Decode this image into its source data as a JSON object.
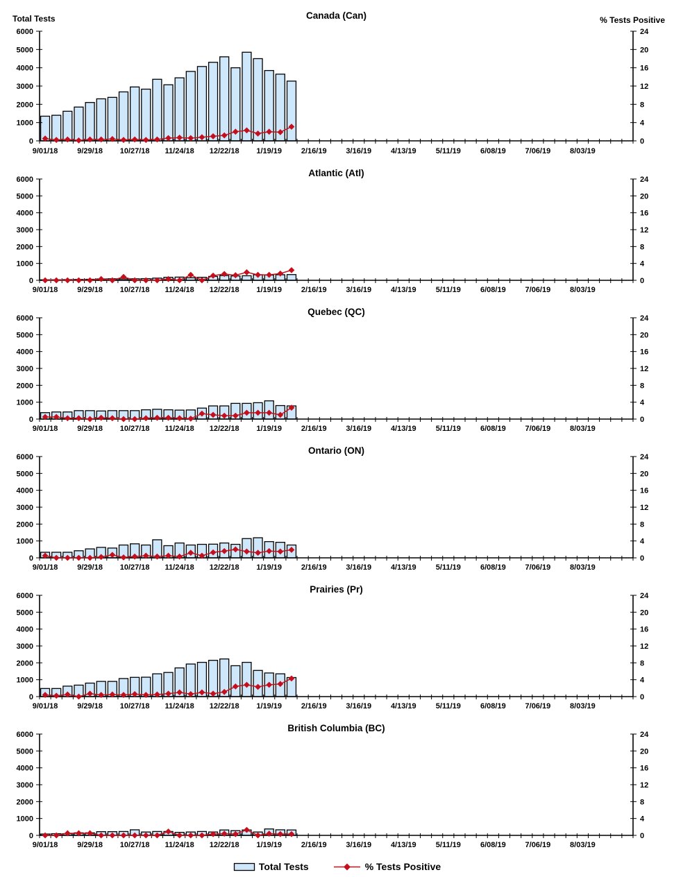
{
  "page": {
    "description": "Six stacked weekly flu surveillance charts: total tests (bars, left axis) and percent tests positive (red diamond line, right axis) for Canada and five regions"
  },
  "legend": {
    "bar_label": "Total Tests",
    "line_label": "% Tests Positive"
  },
  "colors": {
    "bar_fill": "#cfe7fb",
    "bar_stroke": "#000000",
    "line": "#c3101c",
    "marker": "#c3101c",
    "axis": "#000000",
    "text": "#000000"
  },
  "axes": {
    "left_axis": {
      "title": "Total Tests",
      "min": 0,
      "max": 6000,
      "step": 1000
    },
    "right_axis": {
      "title": "% Tests Positive",
      "min": 0,
      "max": 24,
      "step": 4
    },
    "x_axis": {
      "weeks_total": 53,
      "label_every": 4,
      "labels": [
        "9/01/18",
        "9/29/18",
        "10/27/18",
        "11/24/18",
        "12/22/18",
        "1/19/19",
        "2/16/19",
        "3/16/19",
        "4/13/19",
        "5/11/19",
        "6/08/19",
        "7/06/19",
        "8/03/19"
      ]
    }
  },
  "chart_data": [
    {
      "type": "bar+line",
      "title": "Canada (Can)",
      "left_ylim": [
        0,
        6000
      ],
      "right_ylim": [
        0,
        24
      ],
      "x_start": "9/01/18",
      "bar_series": {
        "name": "Total Tests",
        "values": [
          1350,
          1400,
          1620,
          1850,
          2100,
          2300,
          2380,
          2680,
          2950,
          2830,
          3370,
          3070,
          3450,
          3800,
          4070,
          4300,
          4600,
          4000,
          4850,
          4500,
          3850,
          3650,
          3270
        ]
      },
      "line_series": {
        "name": "% Tests Positive",
        "values": [
          0.5,
          0.2,
          0.3,
          0.1,
          0.3,
          0.3,
          0.4,
          0.2,
          0.3,
          0.2,
          0.3,
          0.6,
          0.7,
          0.6,
          0.8,
          1.0,
          1.2,
          2.0,
          2.3,
          1.6,
          2.0,
          1.9,
          3.1
        ]
      }
    },
    {
      "type": "bar+line",
      "title": "Atlantic (Atl)",
      "left_ylim": [
        0,
        6000
      ],
      "right_ylim": [
        0,
        24
      ],
      "x_start": "9/01/18",
      "bar_series": {
        "name": "Total Tests",
        "values": [
          30,
          30,
          40,
          50,
          60,
          80,
          90,
          80,
          90,
          100,
          130,
          180,
          190,
          150,
          180,
          230,
          280,
          260,
          270,
          330,
          310,
          330,
          340
        ]
      },
      "line_series": {
        "name": "% Tests Positive",
        "values": [
          0,
          0,
          0,
          0,
          0,
          0.3,
          0,
          0.8,
          0,
          0,
          0,
          0.3,
          0,
          1.3,
          0,
          1.1,
          1.5,
          1.2,
          1.9,
          1.3,
          1.3,
          1.6,
          2.4
        ]
      }
    },
    {
      "type": "bar+line",
      "title": "Quebec (QC)",
      "left_ylim": [
        0,
        6000
      ],
      "right_ylim": [
        0,
        24
      ],
      "x_start": "9/01/18",
      "bar_series": {
        "name": "Total Tests",
        "values": [
          380,
          420,
          420,
          500,
          500,
          480,
          500,
          500,
          500,
          550,
          580,
          550,
          530,
          540,
          650,
          780,
          780,
          930,
          930,
          970,
          1080,
          800,
          780
        ]
      },
      "line_series": {
        "name": "% Tests Positive",
        "values": [
          0.5,
          0.5,
          0.2,
          0.2,
          0,
          0.3,
          0.2,
          0,
          0,
          0.2,
          0.3,
          0.3,
          0.2,
          0.1,
          1.3,
          1.0,
          0.8,
          0.8,
          1.5,
          1.5,
          1.5,
          1.0,
          2.7
        ]
      }
    },
    {
      "type": "bar+line",
      "title": "Ontario (ON)",
      "left_ylim": [
        0,
        6000
      ],
      "right_ylim": [
        0,
        24
      ],
      "x_start": "9/01/18",
      "bar_series": {
        "name": "Total Tests",
        "values": [
          330,
          330,
          330,
          420,
          530,
          620,
          580,
          760,
          830,
          760,
          1070,
          720,
          880,
          760,
          800,
          810,
          880,
          800,
          1140,
          1190,
          960,
          920,
          760
        ]
      },
      "line_series": {
        "name": "% Tests Positive",
        "values": [
          0.5,
          0,
          0,
          0,
          0,
          0.2,
          0.7,
          0.1,
          0.3,
          0.5,
          0.3,
          0.5,
          0.3,
          1.2,
          0.5,
          1.3,
          1.6,
          2.0,
          1.5,
          1.2,
          1.6,
          1.5,
          1.9
        ]
      }
    },
    {
      "type": "bar+line",
      "title": "Prairies (Pr)",
      "left_ylim": [
        0,
        6000
      ],
      "right_ylim": [
        0,
        24
      ],
      "x_start": "9/01/18",
      "bar_series": {
        "name": "Total Tests",
        "values": [
          480,
          480,
          620,
          680,
          800,
          900,
          900,
          1070,
          1140,
          1150,
          1350,
          1430,
          1700,
          1930,
          2030,
          2150,
          2230,
          1830,
          2030,
          1550,
          1400,
          1350,
          1130
        ]
      },
      "line_series": {
        "name": "% Tests Positive",
        "values": [
          0.4,
          0.2,
          0.5,
          0,
          0.7,
          0.4,
          0.5,
          0.4,
          0.6,
          0.4,
          0.5,
          0.7,
          1.0,
          0.6,
          1.0,
          0.7,
          1.1,
          2.4,
          2.8,
          2.3,
          2.8,
          3.0,
          4.3
        ]
      }
    },
    {
      "type": "bar+line",
      "title": "British Columbia (BC)",
      "left_ylim": [
        0,
        6000
      ],
      "right_ylim": [
        0,
        24
      ],
      "x_start": "9/01/18",
      "bar_series": {
        "name": "Total Tests",
        "values": [
          80,
          100,
          100,
          150,
          150,
          220,
          220,
          230,
          330,
          200,
          230,
          230,
          180,
          200,
          230,
          200,
          320,
          280,
          320,
          200,
          380,
          330,
          320
        ]
      },
      "line_series": {
        "name": "% Tests Positive",
        "values": [
          0,
          0,
          0.5,
          0.5,
          0.5,
          0,
          0,
          0,
          0,
          0,
          0,
          0.9,
          0,
          0,
          0,
          0.3,
          0.4,
          0.3,
          1.3,
          0,
          0.4,
          0.3,
          0.3
        ]
      }
    }
  ]
}
